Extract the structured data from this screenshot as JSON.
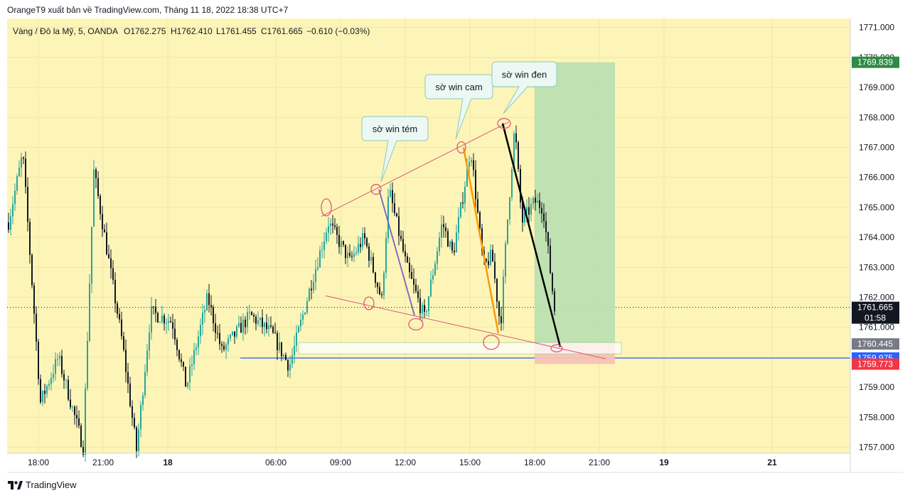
{
  "header": {
    "publisher": "OrangeT9 xuất bản về TradingView.com, Tháng 11 18, 2022 18:38 UTC+7"
  },
  "legend": {
    "symbol": "Vàng / Đô la Mỹ, 5, OANDA",
    "open": "O1762.275",
    "high": "H1762.410",
    "low": "L1761.455",
    "close": "C1761.665",
    "change": "−0.610 (−0.03%)"
  },
  "footer": {
    "brand": "TradingView"
  },
  "colors": {
    "background": "#fdf5b8",
    "up": "#26a69a",
    "down": "#131722",
    "profit_zone": "#b9dfb0",
    "loss_zone": "#f7c3b4",
    "support_line": "#2962ff",
    "channel_line": "#e05577",
    "price_badge_green": "#2f8a45",
    "price_badge_black": "#131722",
    "price_badge_gray": "#787b86",
    "price_badge_blue": "#2962ff",
    "price_badge_red": "#f23645"
  },
  "chart_data": {
    "type": "candlestick",
    "title": "",
    "timeframe": "5",
    "x_ticks": [
      "18:00",
      "21:00",
      "18",
      "06:00",
      "09:00",
      "12:00",
      "15:00",
      "18:00",
      "21:00",
      "19",
      "21"
    ],
    "y_ticks": [
      "1771.000",
      "1770.000",
      "1769.000",
      "1768.000",
      "1767.000",
      "1766.000",
      "1765.000",
      "1764.000",
      "1763.000",
      "1762.000",
      "1761.000",
      "1760.000",
      "1759.000",
      "1758.000",
      "1757.000"
    ],
    "ylim": [
      1756.8,
      1771.3
    ],
    "price_badges": [
      {
        "label": "1769.839",
        "value": 1769.839,
        "role": "take-profit"
      },
      {
        "label": "1761.665",
        "value": 1761.665,
        "role": "last-price"
      },
      {
        "label": "01:58",
        "role": "countdown"
      },
      {
        "label": "1760.445",
        "value": 1760.445,
        "role": "entry"
      },
      {
        "label": "1759.975",
        "value": 1759.975,
        "role": "support-line"
      },
      {
        "label": "1759.773",
        "value": 1759.773,
        "role": "stop-loss"
      }
    ],
    "annotations": [
      {
        "text": "sờ win tém"
      },
      {
        "text": "sờ win cam"
      },
      {
        "text": "sờ win đen"
      }
    ],
    "position": {
      "side": "long",
      "entry": 1760.445,
      "take_profit": 1769.839,
      "stop_loss": 1759.773
    },
    "support_level": 1759.975,
    "anchor_points": [
      [
        0,
        1764.5
      ],
      [
        20,
        1766.8
      ],
      [
        45,
        1758.5
      ],
      [
        70,
        1760.0
      ],
      [
        105,
        1757.0
      ],
      [
        120,
        1766.2
      ],
      [
        160,
        1760.5
      ],
      [
        180,
        1756.9
      ],
      [
        200,
        1761.5
      ],
      [
        230,
        1761.2
      ],
      [
        250,
        1759.0
      ],
      [
        280,
        1762.0
      ],
      [
        300,
        1760.2
      ],
      [
        340,
        1761.4
      ],
      [
        370,
        1760.8
      ],
      [
        395,
        1759.7
      ],
      [
        425,
        1762.4
      ],
      [
        450,
        1764.5
      ],
      [
        480,
        1763.2
      ],
      [
        500,
        1764.0
      ],
      [
        525,
        1761.9
      ],
      [
        535,
        1765.6
      ],
      [
        560,
        1763.0
      ],
      [
        585,
        1761.3
      ],
      [
        610,
        1764.5
      ],
      [
        625,
        1763.4
      ],
      [
        640,
        1765.5
      ],
      [
        650,
        1767.0
      ],
      [
        668,
        1763.0
      ],
      [
        680,
        1763.4
      ],
      [
        692,
        1761.0
      ],
      [
        700,
        1764.0
      ],
      [
        712,
        1767.7
      ],
      [
        722,
        1764.5
      ],
      [
        740,
        1765.2
      ],
      [
        752,
        1765.0
      ],
      [
        768,
        1761.6
      ]
    ]
  }
}
